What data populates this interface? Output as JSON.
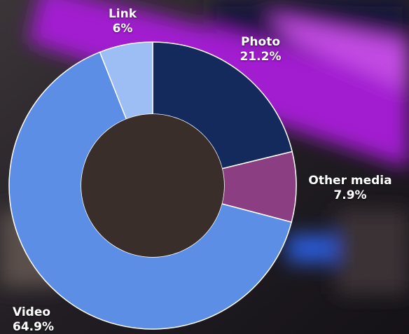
{
  "chart_data": {
    "type": "pie",
    "donut": true,
    "categories": [
      "Photo",
      "Other media",
      "Video",
      "Link"
    ],
    "values": [
      21.2,
      7.9,
      64.9,
      6.0
    ],
    "value_labels": [
      "21.2%",
      "7.9%",
      "64.9%",
      "6%"
    ],
    "colors": [
      "#142a5c",
      "#8b3e82",
      "#5c8ee6",
      "#9dbdf5"
    ],
    "start_at": "top, clockwise",
    "legend": "none"
  },
  "colors": {
    "background_purple": "#a21fd0",
    "background_dark": "#231f27",
    "hole": "#3a2e2b",
    "slice_border": "#ffffff"
  }
}
